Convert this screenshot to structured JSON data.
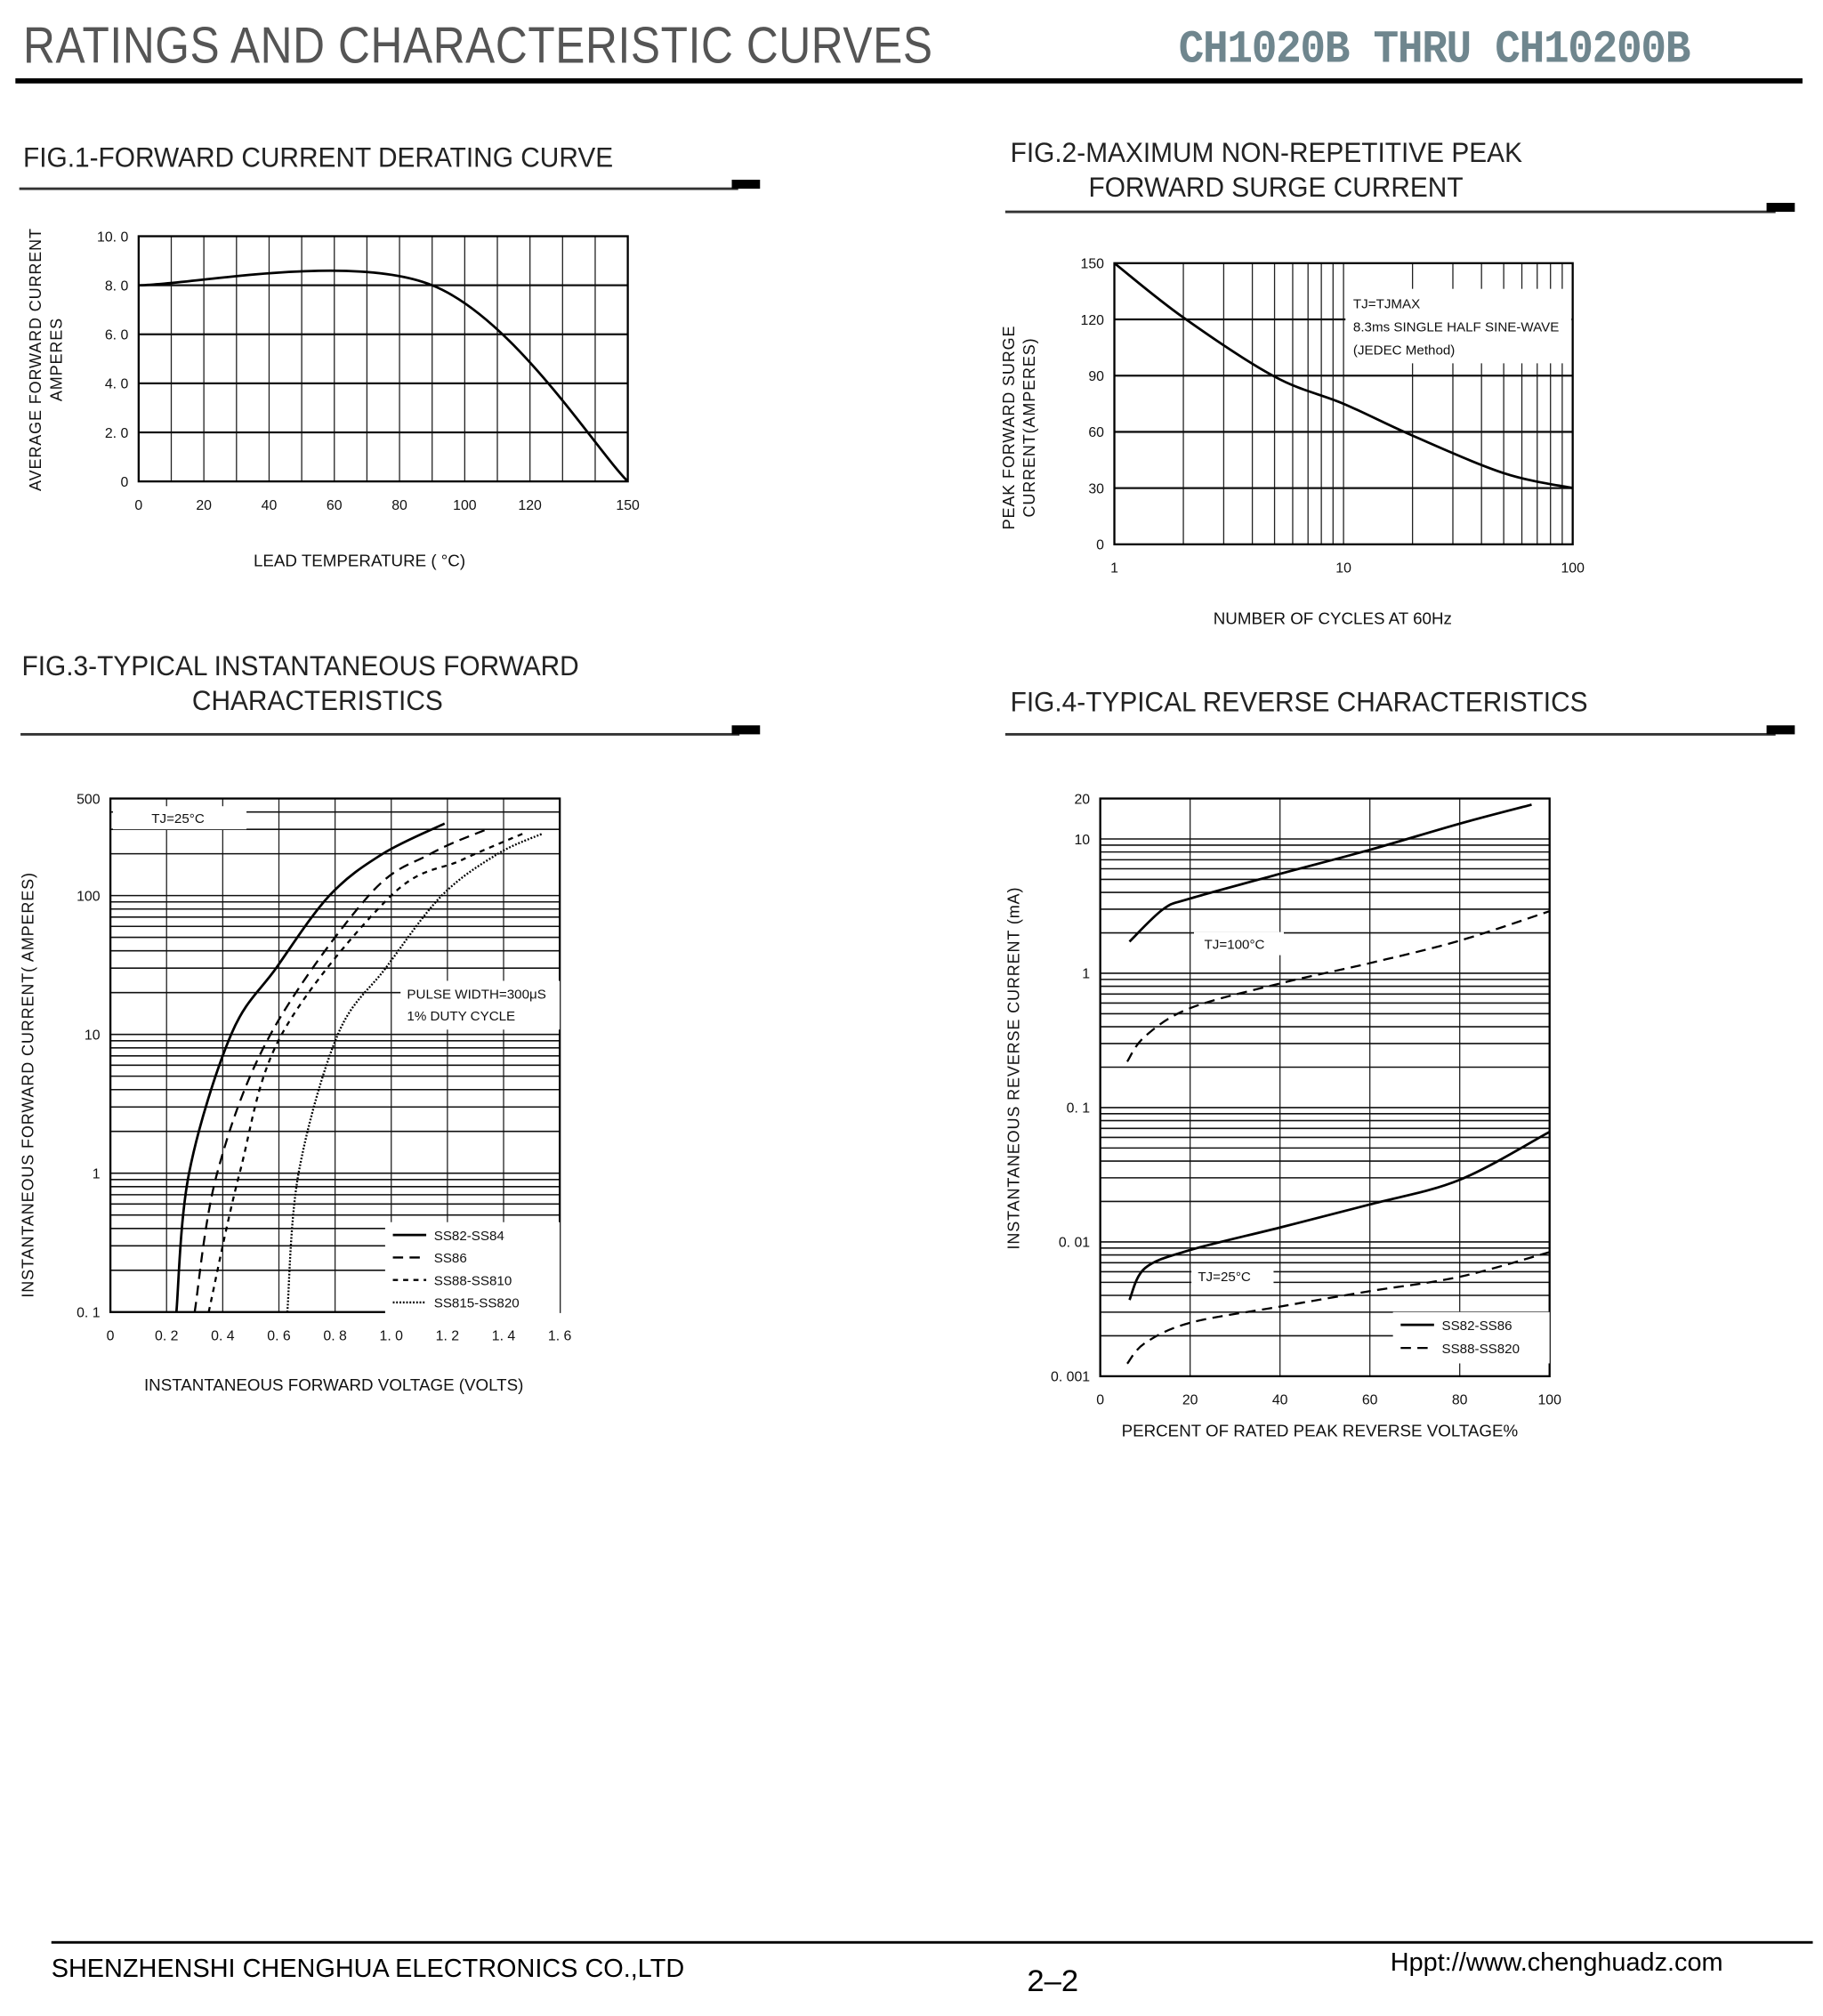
{
  "header": {
    "title": "RATINGS AND CHARACTERISTIC CURVES",
    "part_range": "CH1020B THRU CH10200B"
  },
  "figures": {
    "fig1": {
      "title_lines": [
        "FIG.1-FORWARD CURRENT DERATING CURVE"
      ]
    },
    "fig2": {
      "title_lines": [
        "FIG.2-MAXIMUM NON-REPETITIVE PEAK",
        "FORWARD SURGE CURRENT"
      ]
    },
    "fig3": {
      "title_lines": [
        "FIG.3-TYPICAL INSTANTANEOUS FORWARD",
        "CHARACTERISTICS"
      ]
    },
    "fig4": {
      "title_lines": [
        "FIG.4-TYPICAL REVERSE CHARACTERISTICS"
      ]
    }
  },
  "chart_data": [
    {
      "id": "fig1",
      "type": "line",
      "title": "FIG.1-FORWARD CURRENT DERATING CURVE",
      "xlabel": "LEAD  TEMPERATURE ( °C)",
      "ylabel": [
        "AVERAGE FORWARD CURRENT",
        "AMPERES"
      ],
      "xscale": "linear",
      "yscale": "linear",
      "xlim": [
        0,
        150
      ],
      "ylim": [
        0,
        10
      ],
      "xticks": [
        {
          "v": 0,
          "label": "0"
        },
        {
          "v": 20,
          "label": "20"
        },
        {
          "v": 40,
          "label": "40"
        },
        {
          "v": 60,
          "label": "60"
        },
        {
          "v": 80,
          "label": "80"
        },
        {
          "v": 100,
          "label": "100"
        },
        {
          "v": 120,
          "label": "120"
        },
        {
          "v": 150,
          "label": "150"
        }
      ],
      "yticks": [
        {
          "v": 0,
          "label": "0"
        },
        {
          "v": 2,
          "label": "2. 0"
        },
        {
          "v": 4,
          "label": "4. 0"
        },
        {
          "v": 6,
          "label": "6. 0"
        },
        {
          "v": 8,
          "label": "8. 0"
        },
        {
          "v": 10,
          "label": "10. 0"
        }
      ],
      "grid": true,
      "series": [
        {
          "name": "derating",
          "style": "solid",
          "points": [
            [
              0,
              8
            ],
            [
              90,
              8
            ],
            [
              150,
              0
            ]
          ]
        }
      ],
      "annotations": [],
      "legend": []
    },
    {
      "id": "fig2",
      "type": "line",
      "title": "FIG.2-MAXIMUM NON-REPETITIVE PEAK FORWARD SURGE CURRENT",
      "xlabel": "NUMBER OF CYCLES AT 60Hz",
      "ylabel": [
        "PEAK FORWARD SURGE",
        "CURRENT(AMPERES)"
      ],
      "xscale": "log",
      "yscale": "linear",
      "xlim": [
        1,
        100
      ],
      "ylim": [
        0,
        150
      ],
      "xticks": [
        {
          "v": 1,
          "label": "1"
        },
        {
          "v": 10,
          "label": "10"
        },
        {
          "v": 100,
          "label": "100"
        }
      ],
      "yticks": [
        {
          "v": 0,
          "label": "0"
        },
        {
          "v": 30,
          "label": "30"
        },
        {
          "v": 60,
          "label": "60"
        },
        {
          "v": 90,
          "label": "90"
        },
        {
          "v": 120,
          "label": "120"
        },
        {
          "v": 150,
          "label": "150"
        }
      ],
      "grid": true,
      "series": [
        {
          "name": "surge",
          "style": "solid",
          "points": [
            [
              1,
              150
            ],
            [
              2,
              121
            ],
            [
              5,
              89.5
            ],
            [
              10,
              75
            ],
            [
              20,
              58
            ],
            [
              50,
              38
            ],
            [
              100,
              30
            ]
          ]
        }
      ],
      "annotations": [
        "TJ=TJMAX",
        "8.3ms SINGLE HALF SINE-WAVE",
        "(JEDEC Method)"
      ],
      "legend": []
    },
    {
      "id": "fig3",
      "type": "line",
      "title": "FIG.3-TYPICAL INSTANTANEOUS FORWARD CHARACTERISTICS",
      "xlabel": "INSTANTANEOUS FORWARD VOLTAGE (VOLTS)",
      "ylabel": [
        "INSTANTANEOUS FORWARD CURRENT( AMPERES)"
      ],
      "xscale": "linear",
      "yscale": "log",
      "xlim": [
        0,
        1.6
      ],
      "ylim": [
        0.1,
        500
      ],
      "xticks": [
        {
          "v": 0,
          "label": "0"
        },
        {
          "v": 0.2,
          "label": "0. 2"
        },
        {
          "v": 0.4,
          "label": "0. 4"
        },
        {
          "v": 0.6,
          "label": "0. 6"
        },
        {
          "v": 0.8,
          "label": "0. 8"
        },
        {
          "v": 1.0,
          "label": "1. 0"
        },
        {
          "v": 1.2,
          "label": "1. 2"
        },
        {
          "v": 1.4,
          "label": "1. 4"
        },
        {
          "v": 1.6,
          "label": "1. 6"
        }
      ],
      "yticks": [
        {
          "v": 0.1,
          "label": "0. 1"
        },
        {
          "v": 1,
          "label": "1"
        },
        {
          "v": 10,
          "label": "10"
        },
        {
          "v": 100,
          "label": "100"
        },
        {
          "v": 500,
          "label": "500"
        }
      ],
      "grid": true,
      "series": [
        {
          "name": "SS82-SS84",
          "style": "solid",
          "points": [
            [
              0.235,
              0.1
            ],
            [
              0.28,
              1
            ],
            [
              0.43,
              10
            ],
            [
              0.59,
              30
            ],
            [
              0.78,
              100
            ],
            [
              0.97,
              200
            ],
            [
              1.19,
              330
            ]
          ]
        },
        {
          "name": "SS86",
          "style": "dashed",
          "points": [
            [
              0.3,
              0.1
            ],
            [
              0.38,
              1
            ],
            [
              0.57,
              10
            ],
            [
              0.92,
              100
            ],
            [
              1.14,
              200
            ],
            [
              1.34,
              300
            ]
          ]
        },
        {
          "name": "SS88-SS810",
          "style": "short-dash",
          "points": [
            [
              0.35,
              0.1
            ],
            [
              0.46,
              1
            ],
            [
              0.61,
              10
            ],
            [
              1.0,
              100
            ],
            [
              1.25,
              180
            ],
            [
              1.47,
              280
            ]
          ]
        },
        {
          "name": "SS815-SS820",
          "style": "dotted",
          "points": [
            [
              0.63,
              0.1
            ],
            [
              0.67,
              1
            ],
            [
              0.81,
              10
            ],
            [
              0.98,
              30
            ],
            [
              1.18,
              100
            ],
            [
              1.38,
              200
            ],
            [
              1.54,
              280
            ]
          ]
        }
      ],
      "annotations": [
        "TJ=25°C",
        "PULSE WIDTH=300μS",
        "1% DUTY CYCLE"
      ],
      "legend": [
        "SS82-SS84",
        "SS86",
        "SS88-SS810",
        "SS815-SS820"
      ]
    },
    {
      "id": "fig4",
      "type": "line",
      "title": "FIG.4-TYPICAL REVERSE CHARACTERISTICS",
      "xlabel": "PERCENT OF RATED PEAK REVERSE VOLTAGE%",
      "ylabel": [
        "INSTANTANEOUS REVERSE CURRENT  (mA)"
      ],
      "xscale": "linear",
      "yscale": "log",
      "xlim": [
        0,
        100
      ],
      "ylim": [
        0.001,
        20
      ],
      "xticks": [
        {
          "v": 0,
          "label": "0"
        },
        {
          "v": 20,
          "label": "20"
        },
        {
          "v": 40,
          "label": "40"
        },
        {
          "v": 60,
          "label": "60"
        },
        {
          "v": 80,
          "label": "80"
        },
        {
          "v": 100,
          "label": "100"
        }
      ],
      "yticks": [
        {
          "v": 0.001,
          "label": "0. 001"
        },
        {
          "v": 0.01,
          "label": "0. 01"
        },
        {
          "v": 0.1,
          "label": "0. 1"
        },
        {
          "v": 1,
          "label": "1"
        },
        {
          "v": 10,
          "label": "10"
        },
        {
          "v": 20,
          "label": "20"
        }
      ],
      "grid": true,
      "series": [
        {
          "name": "SS82-SS86 TJ=100°C",
          "style": "solid",
          "points": [
            [
              6.5,
              1.72
            ],
            [
              14,
              3.0
            ],
            [
              20,
              3.6
            ],
            [
              40,
              5.5
            ],
            [
              60,
              8.3
            ],
            [
              80,
              13
            ],
            [
              96,
              18
            ]
          ]
        },
        {
          "name": "SS88-SS820 TJ=100°C",
          "style": "dashed",
          "points": [
            [
              6,
              0.22
            ],
            [
              10,
              0.34
            ],
            [
              20,
              0.55
            ],
            [
              40,
              0.84
            ],
            [
              60,
              1.19
            ],
            [
              80,
              1.75
            ],
            [
              100,
              2.9
            ]
          ]
        },
        {
          "name": "SS82-SS86 TJ=25°C",
          "style": "solid",
          "points": [
            [
              6.5,
              0.0037
            ],
            [
              10,
              0.0064
            ],
            [
              20,
              0.0087
            ],
            [
              40,
              0.0128
            ],
            [
              60,
              0.019
            ],
            [
              80,
              0.029
            ],
            [
              100,
              0.066
            ]
          ]
        },
        {
          "name": "SS88-SS820 TJ=25°C",
          "style": "dashed",
          "points": [
            [
              6,
              0.00124
            ],
            [
              10,
              0.00177
            ],
            [
              20,
              0.0025
            ],
            [
              40,
              0.0033
            ],
            [
              60,
              0.0043
            ],
            [
              80,
              0.0055
            ],
            [
              100,
              0.0084
            ]
          ]
        }
      ],
      "annotations": [
        "TJ=100°C",
        "TJ=25°C"
      ],
      "legend": [
        "SS82-SS86",
        "SS88-SS820"
      ]
    }
  ],
  "footer": {
    "company": "SHENZHENSHI CHENGHUA ELECTRONICS CO.,LTD",
    "page": "2–2",
    "website": "Hppt://www.chenghuadz.com"
  }
}
